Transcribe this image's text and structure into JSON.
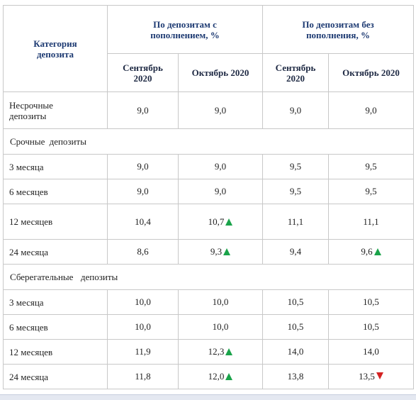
{
  "header": {
    "category": "Категория депозита",
    "with_top_up": "По депозитам с пополнением, %",
    "without_top_up": "По депозитам без пополнения, %",
    "sep": "Сентябрь 2020",
    "oct": "Октябрь 2020"
  },
  "rows": {
    "r0": {
      "label": "Несрочные депозиты",
      "a": "9,0",
      "b": "9,0",
      "c": "9,0",
      "d": "9,0"
    },
    "s1": "Срочные депозиты",
    "r1": {
      "label": "3 месяца",
      "a": "9,0",
      "b": "9,0",
      "c": "9,5",
      "d": "9,5"
    },
    "r2": {
      "label": "6 месяцев",
      "a": "9,0",
      "b": "9,0",
      "c": "9,5",
      "d": "9,5"
    },
    "r3": {
      "label": "12 месяцев",
      "a": "10,4",
      "b": "10,7",
      "c": "11,1",
      "d": "11,1",
      "b_trend": "up"
    },
    "r4": {
      "label": "24 месяца",
      "a": "8,6",
      "b": "9,3",
      "c": "9,4",
      "d": "9,6",
      "b_trend": "up",
      "d_trend": "up"
    },
    "s2": "Сберегательные  депозиты",
    "r5": {
      "label": "3 месяца",
      "a": "10,0",
      "b": "10,0",
      "c": "10,5",
      "d": "10,5"
    },
    "r6": {
      "label": "6 месяцев",
      "a": "10,0",
      "b": "10,0",
      "c": "10,5",
      "d": "10,5"
    },
    "r7": {
      "label": "12 месяцев",
      "a": "11,9",
      "b": "12,3",
      "c": "14,0",
      "d": "14,0",
      "b_trend": "up"
    },
    "r8": {
      "label": "24 месяца",
      "a": "11,8",
      "b": "12,0",
      "c": "13,8",
      "d": "13,5",
      "b_trend": "up",
      "d_trend": "down"
    }
  },
  "colors": {
    "up": "#1aa34a",
    "down": "#d42222",
    "header_text": "#1d3a72",
    "border": "#c8c8c8"
  }
}
